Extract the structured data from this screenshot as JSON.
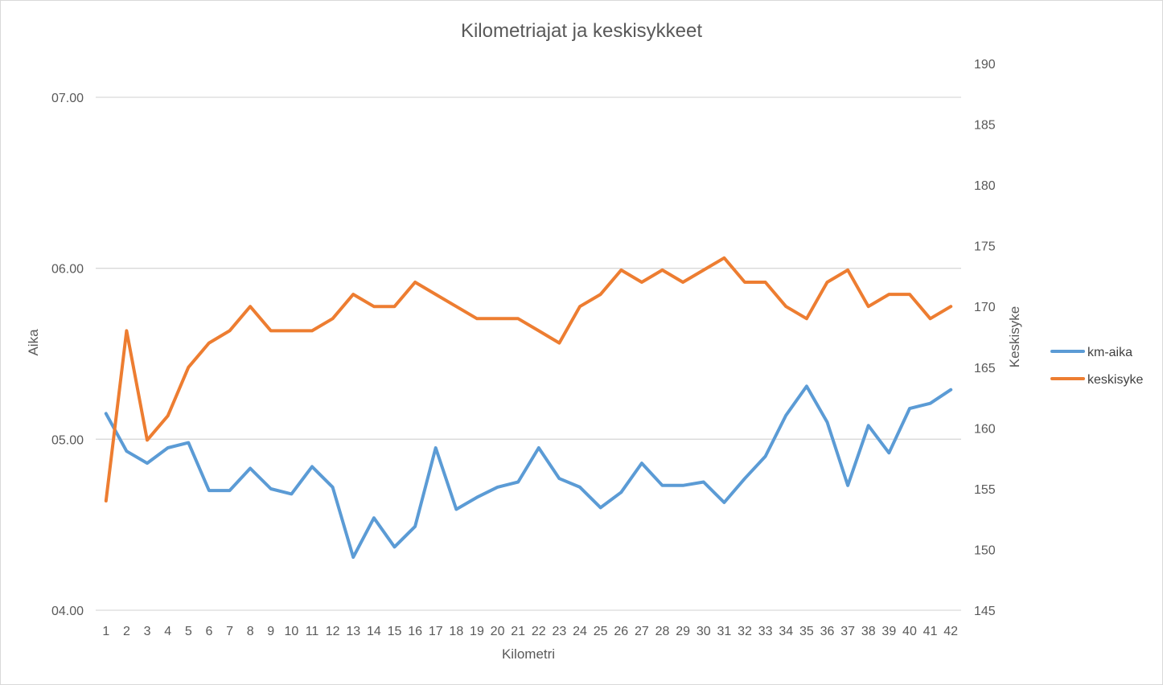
{
  "chart_data": {
    "type": "line",
    "title": "Kilometriajat ja keskisykkeet",
    "xlabel": "Kilometri",
    "ylabel_left": "Aika",
    "ylabel_right": "Keskisyke",
    "categories": [
      "1",
      "2",
      "3",
      "4",
      "5",
      "6",
      "7",
      "8",
      "9",
      "10",
      "11",
      "12",
      "13",
      "14",
      "15",
      "16",
      "17",
      "18",
      "19",
      "20",
      "21",
      "22",
      "23",
      "24",
      "25",
      "26",
      "27",
      "28",
      "29",
      "30",
      "31",
      "32",
      "33",
      "34",
      "35",
      "36",
      "37",
      "38",
      "39",
      "40",
      "41",
      "42"
    ],
    "left_axis": {
      "ticks": [
        4.0,
        5.0,
        6.0,
        7.0
      ],
      "tick_labels": [
        "04.00",
        "05.00",
        "06.00",
        "07.00"
      ],
      "ylim": [
        4.0,
        7.0
      ],
      "unit": "minutes"
    },
    "right_axis": {
      "ticks": [
        145,
        150,
        155,
        160,
        165,
        170,
        175,
        180,
        185,
        190
      ],
      "tick_labels": [
        "145",
        "150",
        "155",
        "160",
        "165",
        "170",
        "175",
        "180",
        "185",
        "190"
      ],
      "ylim": [
        145,
        190
      ]
    },
    "series": [
      {
        "name": "km-aika",
        "axis": "left",
        "color": "#5B9BD5",
        "values": [
          5.15,
          4.93,
          4.86,
          4.95,
          4.98,
          4.7,
          4.7,
          4.83,
          4.71,
          4.68,
          4.84,
          4.72,
          4.31,
          4.54,
          4.37,
          4.49,
          4.95,
          4.59,
          4.66,
          4.72,
          4.75,
          4.95,
          4.77,
          4.72,
          4.6,
          4.69,
          4.86,
          4.73,
          4.73,
          4.75,
          4.63,
          4.77,
          4.9,
          5.14,
          5.31,
          5.1,
          4.73,
          5.08,
          4.92,
          5.18,
          5.21,
          5.29
        ]
      },
      {
        "name": "keskisyke",
        "axis": "right",
        "color": "#ED7D31",
        "values": [
          154,
          168,
          159,
          161,
          165,
          167,
          168,
          170,
          168,
          168,
          168,
          169,
          171,
          170,
          170,
          172,
          171,
          170,
          169,
          169,
          169,
          168,
          167,
          170,
          171,
          173,
          172,
          173,
          172,
          173,
          174,
          172,
          172,
          170,
          169,
          172,
          173,
          170,
          171,
          171,
          169,
          170
        ]
      }
    ],
    "grid": "horizontal",
    "legend_position": "right"
  }
}
